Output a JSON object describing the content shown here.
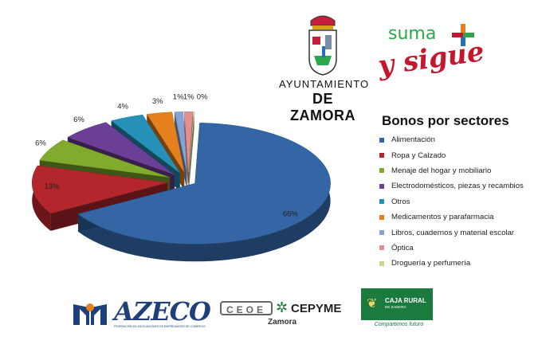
{
  "chart_data": {
    "type": "pie",
    "title": "Bonos por sectores",
    "legend_position": "right",
    "slices": [
      {
        "label": "Alimentación",
        "value": 66,
        "value_label": "66%",
        "color": "#3465a4"
      },
      {
        "label": "Ropa y Calzado",
        "value": 13,
        "value_label": "13%",
        "color": "#b3262c"
      },
      {
        "label": "Menaje del hogar y mobiliario",
        "value": 6,
        "value_label": "6%",
        "color": "#80ab2c"
      },
      {
        "label": "Electrodomésticos, piezas y recambios",
        "value": 6,
        "value_label": "6%",
        "color": "#6b3f96"
      },
      {
        "label": "Otros",
        "value": 4,
        "value_label": "4%",
        "color": "#2590b8"
      },
      {
        "label": "Medicamentos y parafarmacia",
        "value": 3,
        "value_label": "3%",
        "color": "#e5801e"
      },
      {
        "label": "Libros, cuadernos y  material escolar",
        "value": 1,
        "value_label": "1%",
        "color": "#86a3d6"
      },
      {
        "label": "Óptica",
        "value": 1,
        "value_label": "1%",
        "color": "#e48e90"
      },
      {
        "label": "Droguería y perfumería",
        "value": 0,
        "value_label": "0%",
        "color": "#c6d88f"
      }
    ]
  },
  "logos": {
    "ayuntamiento_line1": "AYUNTAMIENTO",
    "ayuntamiento_line2": "DE ZAMORA",
    "suma_word": "suma",
    "sigue_word": "y sigue",
    "azeco_name": "AZECO",
    "azeco_subtitle": "FEDERACIÓN DE ASOCIACIONES DE EMPRESARIOS DE COMERCIO",
    "ceoe_name": "CEOE",
    "cepyme_name": "CEPYME",
    "cepyme_city": "Zamora",
    "caja_name": "CAJA RURAL",
    "caja_city": "DE ZAMORA",
    "caja_slogan": "Compartimos futuro"
  }
}
